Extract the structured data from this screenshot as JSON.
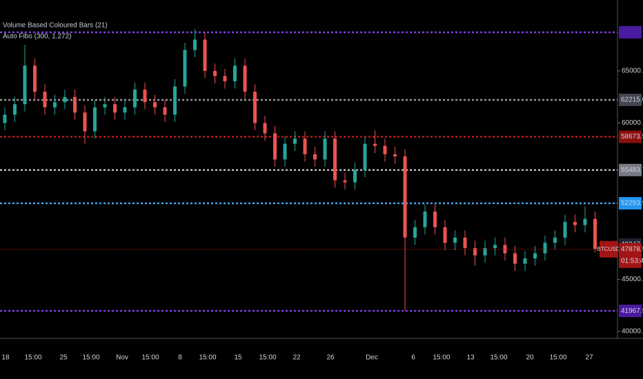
{
  "chart_data": {
    "type": "candlestick",
    "legend": [
      "Volume Based Coloured Bars (21)",
      "Auto Fibo (300, 1.272)"
    ],
    "symbol": "BTCUSD",
    "up_color": "#26a69a",
    "down_color": "#ef5350",
    "categories": [
      "18",
      "15:00",
      "25",
      "15:00",
      "Nov",
      "15:00",
      "8",
      "15:00",
      "15",
      "15:00",
      "22",
      "26",
      "Dec",
      "6",
      "15:00",
      "13",
      "15:00",
      "20",
      "15:00",
      "27"
    ],
    "open": [
      60000,
      60800,
      61800,
      65500,
      63000,
      61500,
      62000,
      62500,
      61000,
      59200,
      61500,
      61800,
      61000,
      61500,
      63200,
      62000,
      61500,
      60800,
      63500,
      67000,
      68000,
      65000,
      64500,
      64000,
      65500,
      63000,
      60000,
      59000,
      56500,
      58000,
      58500,
      57000,
      56500,
      58500,
      54500,
      54300,
      55500,
      58000,
      57800,
      57000,
      56800,
      49000,
      50000,
      51500,
      50000,
      48500,
      49000,
      48000,
      47300,
      48000,
      48300,
      47500,
      46500,
      47000,
      47500,
      48500,
      49000,
      50500,
      50200,
      50800
    ],
    "high": [
      61500,
      62500,
      67500,
      66200,
      63700,
      62700,
      63200,
      63200,
      61700,
      62200,
      62500,
      62500,
      62200,
      63900,
      63900,
      62700,
      62200,
      64200,
      67700,
      69000,
      68700,
      65700,
      65200,
      66200,
      66200,
      63700,
      60700,
      59700,
      58700,
      59200,
      59200,
      57700,
      59200,
      59200,
      55200,
      56200,
      58700,
      59300,
      58500,
      57700,
      57500,
      50700,
      52200,
      52200,
      50700,
      49700,
      49700,
      48700,
      48700,
      49000,
      49000,
      48200,
      47700,
      48200,
      49200,
      49700,
      51200,
      51200,
      52000,
      51500
    ],
    "low": [
      59300,
      60100,
      61100,
      62300,
      60800,
      60800,
      61300,
      60300,
      58000,
      58500,
      60800,
      60300,
      60300,
      60800,
      61300,
      60800,
      60100,
      60100,
      62800,
      66300,
      64300,
      63800,
      63300,
      63300,
      62300,
      59300,
      58300,
      55800,
      55800,
      57300,
      56300,
      55800,
      55800,
      53800,
      53600,
      53600,
      54800,
      57100,
      56300,
      56100,
      42000,
      48300,
      49300,
      49300,
      47800,
      47800,
      47300,
      46300,
      46600,
      47300,
      46800,
      45800,
      45800,
      46300,
      46800,
      47800,
      48300,
      49500,
      49500,
      47600
    ],
    "close": [
      60800,
      61800,
      65500,
      63000,
      61500,
      62000,
      62500,
      61000,
      59200,
      61500,
      61800,
      61000,
      61500,
      63200,
      62000,
      61500,
      60800,
      63500,
      67000,
      68000,
      65000,
      64500,
      64000,
      65500,
      63000,
      60000,
      59000,
      56500,
      58000,
      58500,
      57000,
      56500,
      58500,
      54500,
      54300,
      55500,
      58000,
      57800,
      57000,
      56800,
      49000,
      50000,
      51500,
      50000,
      48500,
      49000,
      48000,
      47300,
      48000,
      48300,
      47500,
      46500,
      47000,
      47500,
      48500,
      49000,
      50500,
      50200,
      50800,
      47900
    ],
    "ylim": [
      39400,
      71800
    ],
    "yticks": [
      {
        "value": 65000,
        "label": "65000.00"
      },
      {
        "value": 60000,
        "label": "60000.00"
      },
      {
        "value": 45000,
        "label": "45000.00"
      },
      {
        "value": 40000,
        "label": "40000.00"
      }
    ],
    "levels": [
      {
        "value": 68700,
        "color": "#7b3fe4",
        "box": "#4a1aa0"
      },
      {
        "value": 62215.05,
        "color": "#9a9a9a",
        "box": "#434651"
      },
      {
        "value": 58673.59,
        "color": "#b71c1c",
        "box": "#8b0e0e"
      },
      {
        "value": 55483.75,
        "color": "#bdbdbd",
        "box": "#787b86"
      },
      {
        "value": 52293.92,
        "color": "#42a5f5",
        "box": "#2196f3"
      },
      {
        "value": {
          "value": 41967.5,
          "label": "41967.50"
        },
        "color": "#7b3fe4",
        "box": "#4a1aa0"
      }
    ],
    "price_marker": 48347.17,
    "last_price": 47878.91,
    "last_price_color": "#a31515",
    "countdown": "01:53:43"
  }
}
